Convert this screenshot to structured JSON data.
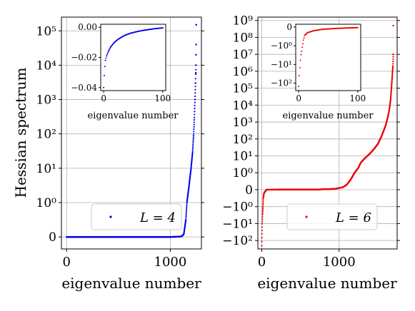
{
  "figure": {
    "ylabel": "Hessian spectrum"
  },
  "chart_data": [
    {
      "type": "scatter",
      "scale": "symlog",
      "xlabel": "eigenvalue number",
      "xlim": [
        -50,
        1300
      ],
      "xticks": [
        {
          "v": 0,
          "label": "0"
        },
        {
          "v": 1000,
          "label": "1000"
        }
      ],
      "yticks": [
        {
          "v": 0,
          "label": "0"
        },
        {
          "v": 1,
          "label": "10⁰"
        },
        {
          "v": 10,
          "label": "10¹"
        },
        {
          "v": 100,
          "label": "10²"
        },
        {
          "v": 1000,
          "label": "10³"
        },
        {
          "v": 10000,
          "label": "10⁴"
        },
        {
          "v": 100000,
          "label": "10⁵"
        }
      ],
      "grid": true,
      "legend": {
        "label": "L = 4",
        "placement": "lower-right"
      },
      "series": [
        {
          "label": "L = 4",
          "color": "#0000ee",
          "n": 1250,
          "points": [
            [
              0,
              0
            ],
            [
              1000,
              0.001
            ],
            [
              1080,
              0.005
            ],
            [
              1110,
              0.02
            ],
            [
              1130,
              0.08
            ],
            [
              1150,
              0.5
            ],
            [
              1160,
              1
            ],
            [
              1180,
              3
            ],
            [
              1200,
              10
            ],
            [
              1215,
              30
            ],
            [
              1225,
              100
            ],
            [
              1232,
              300
            ],
            [
              1238,
              1000
            ],
            [
              1243,
              3000
            ],
            [
              1247,
              10000
            ],
            [
              1249,
              40000
            ],
            [
              1250,
              150000
            ]
          ],
          "sparse_top": [
            [
              1238,
              1000
            ],
            [
              1243,
              3000
            ],
            [
              1246,
              6000
            ],
            [
              1247,
              10000
            ],
            [
              1248,
              20000
            ],
            [
              1249,
              40000
            ],
            [
              1250,
              150000
            ]
          ]
        }
      ],
      "inset": {
        "type": "scatter",
        "scale": "linear",
        "xlabel": "eigenvalue number",
        "xlim": [
          -5,
          105
        ],
        "ylim": [
          -0.042,
          0.002
        ],
        "xticks": [
          {
            "v": 0,
            "label": "0"
          },
          {
            "v": 100,
            "label": "100"
          }
        ],
        "yticks": [
          {
            "v": 0,
            "label": "0.00"
          },
          {
            "v": -0.02,
            "label": "−0.02"
          },
          {
            "v": -0.04,
            "label": "−0.04"
          }
        ],
        "points": [
          [
            0,
            -0.04
          ],
          [
            1,
            -0.032
          ],
          [
            2,
            -0.026
          ],
          [
            3,
            -0.022
          ],
          [
            5,
            -0.019
          ],
          [
            8,
            -0.016
          ],
          [
            12,
            -0.013
          ],
          [
            18,
            -0.01
          ],
          [
            25,
            -0.0078
          ],
          [
            35,
            -0.0055
          ],
          [
            45,
            -0.004
          ],
          [
            55,
            -0.003
          ],
          [
            65,
            -0.0022
          ],
          [
            75,
            -0.0016
          ],
          [
            85,
            -0.001
          ],
          [
            95,
            -0.0006
          ],
          [
            100,
            -0.0004
          ]
        ]
      }
    },
    {
      "type": "scatter",
      "scale": "symlog",
      "xlabel": "eigenvalue number",
      "xlim": [
        -50,
        1750
      ],
      "xticks": [
        {
          "v": 0,
          "label": "0"
        },
        {
          "v": 1000,
          "label": "1000"
        }
      ],
      "yticks": [
        {
          "v": -100,
          "label": "−10²"
        },
        {
          "v": -10,
          "label": "−10¹"
        },
        {
          "v": -1,
          "label": "−10⁰"
        },
        {
          "v": 0,
          "label": "0"
        },
        {
          "v": 1,
          "label": "10⁰"
        },
        {
          "v": 10,
          "label": "10¹"
        },
        {
          "v": 100,
          "label": "10²"
        },
        {
          "v": 1000,
          "label": "10³"
        },
        {
          "v": 10000,
          "label": "10⁴"
        },
        {
          "v": 100000,
          "label": "10⁵"
        },
        {
          "v": 1000000,
          "label": "10⁶"
        },
        {
          "v": 10000000,
          "label": "10⁷"
        },
        {
          "v": 100000000,
          "label": "10⁸"
        },
        {
          "v": 1000000000,
          "label": "10⁹"
        }
      ],
      "grid": true,
      "legend": {
        "label": "L = 6",
        "placement": "lower-right"
      },
      "series": [
        {
          "label": "L = 6",
          "color": "#ee0000",
          "n": 1700,
          "points": [
            [
              0,
              -200
            ],
            [
              3,
              -40
            ],
            [
              6,
              -10
            ],
            [
              10,
              -3
            ],
            [
              15,
              -1
            ],
            [
              20,
              -0.5
            ],
            [
              30,
              -0.2
            ],
            [
              60,
              0
            ],
            [
              700,
              0.01
            ],
            [
              950,
              0.05
            ],
            [
              1050,
              0.15
            ],
            [
              1100,
              0.3
            ],
            [
              1150,
              0.6
            ],
            [
              1200,
              1
            ],
            [
              1250,
              2
            ],
            [
              1280,
              4
            ],
            [
              1330,
              7
            ],
            [
              1400,
              14
            ],
            [
              1450,
              25
            ],
            [
              1500,
              50
            ],
            [
              1550,
              150
            ],
            [
              1600,
              600
            ],
            [
              1630,
              2000
            ],
            [
              1650,
              6000
            ],
            [
              1665,
              20000
            ],
            [
              1675,
              80000
            ],
            [
              1685,
              400000
            ],
            [
              1695,
              2000000
            ],
            [
              1700,
              10000000
            ]
          ],
          "sparse_top": [
            [
              1685,
              400000
            ],
            [
              1690,
              1000000
            ],
            [
              1695,
              2000000
            ],
            [
              1700,
              10000000
            ],
            [
              1700,
              500000000
            ]
          ]
        }
      ],
      "inset": {
        "type": "scatter",
        "scale": "symlog",
        "xlabel": "eigenvalue number",
        "xlim": [
          -5,
          105
        ],
        "ylim": [
          -200,
          0.5
        ],
        "xticks": [
          {
            "v": 0,
            "label": "0"
          },
          {
            "v": 100,
            "label": "100"
          }
        ],
        "yticks": [
          {
            "v": 0,
            "label": "0"
          },
          {
            "v": -1,
            "label": "−10⁰"
          },
          {
            "v": -10,
            "label": "−10¹"
          },
          {
            "v": -100,
            "label": "−10²"
          }
        ],
        "points": [
          [
            0,
            -150
          ],
          [
            1,
            -40
          ],
          [
            2,
            -15
          ],
          [
            3,
            -6
          ],
          [
            4,
            -3
          ],
          [
            5,
            -2
          ],
          [
            6,
            -1.2
          ],
          [
            8,
            -0.7
          ],
          [
            10,
            -0.45
          ],
          [
            15,
            -0.3
          ],
          [
            25,
            -0.2
          ],
          [
            40,
            -0.12
          ],
          [
            60,
            -0.08
          ],
          [
            80,
            -0.05
          ],
          [
            100,
            -0.03
          ]
        ]
      }
    }
  ]
}
